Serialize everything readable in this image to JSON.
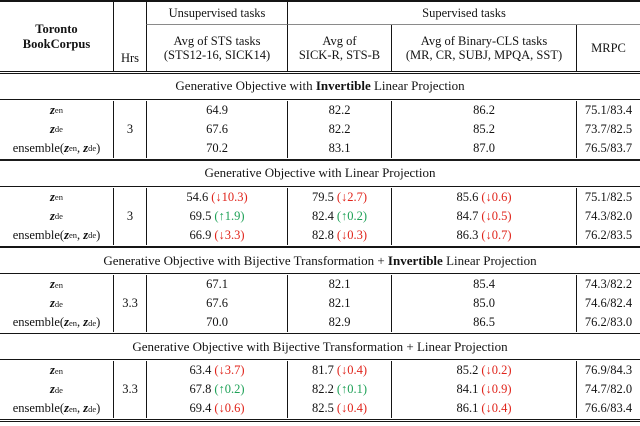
{
  "colors": {
    "delta_down": "#e0241b",
    "delta_up": "#1ea157",
    "rule": "#151515",
    "cmidrule": "#8a8a8a"
  },
  "header": {
    "corpus_line1": "Toronto",
    "corpus_line2": "BookCorpus",
    "hrs_label": "Hrs",
    "unsupervised_group": "Unsupervised tasks",
    "supervised_group": "Supervised tasks",
    "sts_line1": "Avg of STS tasks",
    "sts_line2": "(STS12-16, SICK14)",
    "sick_line1": "Avg of",
    "sick_line2": "SICK-R, STS-B",
    "cls_line1": "Avg of Binary-CLS tasks",
    "cls_line2": "(MR, CR, SUBJ, MPQA, SST)",
    "mrpc_label": "MRPC"
  },
  "sections": [
    {
      "title": [
        {
          "s": "Generative Objective with "
        },
        {
          "s": "Invertible",
          "bold": true
        },
        {
          "s": " Linear Projection"
        }
      ],
      "hrs": "3",
      "rows": [
        {
          "label": [
            {
              "t": "var",
              "s": "z",
              "sub": "en"
            }
          ],
          "cells": [
            {
              "v": "64.9"
            },
            {
              "v": "82.2"
            },
            {
              "v": "86.2"
            },
            {
              "v": "75.1/83.4"
            }
          ]
        },
        {
          "label": [
            {
              "t": "var",
              "s": "z",
              "sub": "de"
            }
          ],
          "cells": [
            {
              "v": "67.6"
            },
            {
              "v": "82.2"
            },
            {
              "v": "85.2"
            },
            {
              "v": "73.7/82.5"
            }
          ]
        },
        {
          "label": [
            {
              "t": "text",
              "s": "ensemble("
            },
            {
              "t": "var",
              "s": "z",
              "sub": "en"
            },
            {
              "t": "text",
              "s": ", "
            },
            {
              "t": "var",
              "s": "z",
              "sub": "de"
            },
            {
              "t": "text",
              "s": ")"
            }
          ],
          "cells": [
            {
              "v": "70.2"
            },
            {
              "v": "83.1"
            },
            {
              "v": "87.0"
            },
            {
              "v": "76.5/83.7"
            }
          ]
        }
      ]
    },
    {
      "title": [
        {
          "s": "Generative Objective with Linear Projection"
        }
      ],
      "hrs": "3",
      "rows": [
        {
          "label": [
            {
              "t": "var",
              "s": "z",
              "sub": "en"
            }
          ],
          "cells": [
            {
              "v": "54.6",
              "d": "(↓10.3)",
              "dir": "down"
            },
            {
              "v": "79.5",
              "d": "(↓2.7)",
              "dir": "down"
            },
            {
              "v": "85.6",
              "d": "(↓0.6)",
              "dir": "down"
            },
            {
              "v": "75.1/82.5"
            }
          ]
        },
        {
          "label": [
            {
              "t": "var",
              "s": "z",
              "sub": "de"
            }
          ],
          "cells": [
            {
              "v": "69.5",
              "d": "(↑1.9)",
              "dir": "up"
            },
            {
              "v": "82.4",
              "d": "(↑0.2)",
              "dir": "up"
            },
            {
              "v": "84.7",
              "d": "(↓0.5)",
              "dir": "down"
            },
            {
              "v": "74.3/82.0"
            }
          ]
        },
        {
          "label": [
            {
              "t": "text",
              "s": "ensemble("
            },
            {
              "t": "var",
              "s": "z",
              "sub": "en"
            },
            {
              "t": "text",
              "s": ", "
            },
            {
              "t": "var",
              "s": "z",
              "sub": "de"
            },
            {
              "t": "text",
              "s": ")"
            }
          ],
          "cells": [
            {
              "v": "66.9",
              "d": "(↓3.3)",
              "dir": "down"
            },
            {
              "v": "82.8",
              "d": "(↓0.3)",
              "dir": "down"
            },
            {
              "v": "86.3",
              "d": "(↓0.7)",
              "dir": "down"
            },
            {
              "v": "76.2/83.5"
            }
          ]
        }
      ]
    },
    {
      "title": [
        {
          "s": "Generative Objective with Bijective Transformation + "
        },
        {
          "s": "Invertible",
          "bold": true
        },
        {
          "s": " Linear Projection"
        }
      ],
      "hrs": "3.3",
      "rows": [
        {
          "label": [
            {
              "t": "var",
              "s": "z",
              "sub": "en"
            }
          ],
          "cells": [
            {
              "v": "67.1"
            },
            {
              "v": "82.1"
            },
            {
              "v": "85.4"
            },
            {
              "v": "74.3/82.2"
            }
          ]
        },
        {
          "label": [
            {
              "t": "var",
              "s": "z",
              "sub": "de"
            }
          ],
          "cells": [
            {
              "v": "67.6"
            },
            {
              "v": "82.1"
            },
            {
              "v": "85.0"
            },
            {
              "v": "74.6/82.4"
            }
          ]
        },
        {
          "label": [
            {
              "t": "text",
              "s": "ensemble("
            },
            {
              "t": "var",
              "s": "z",
              "sub": "en"
            },
            {
              "t": "text",
              "s": ", "
            },
            {
              "t": "var",
              "s": "z",
              "sub": "de"
            },
            {
              "t": "text",
              "s": ")"
            }
          ],
          "cells": [
            {
              "v": "70.0"
            },
            {
              "v": "82.9"
            },
            {
              "v": "86.5"
            },
            {
              "v": "76.2/83.0"
            }
          ]
        }
      ]
    },
    {
      "title": [
        {
          "s": "Generative Objective with Bijective Transformation + Linear Projection"
        }
      ],
      "hrs": "3.3",
      "rows": [
        {
          "label": [
            {
              "t": "var",
              "s": "z",
              "sub": "en"
            }
          ],
          "cells": [
            {
              "v": "63.4",
              "d": "(↓3.7)",
              "dir": "down"
            },
            {
              "v": "81.7",
              "d": "(↓0.4)",
              "dir": "down"
            },
            {
              "v": "85.2",
              "d": "(↓0.2)",
              "dir": "down"
            },
            {
              "v": "76.9/84.3"
            }
          ]
        },
        {
          "label": [
            {
              "t": "var",
              "s": "z",
              "sub": "de"
            }
          ],
          "cells": [
            {
              "v": "67.8",
              "d": "(↑0.2)",
              "dir": "up"
            },
            {
              "v": "82.2",
              "d": "(↑0.1)",
              "dir": "up"
            },
            {
              "v": "84.1",
              "d": "(↓0.9)",
              "dir": "down"
            },
            {
              "v": "74.7/82.0"
            }
          ]
        },
        {
          "label": [
            {
              "t": "text",
              "s": "ensemble("
            },
            {
              "t": "var",
              "s": "z",
              "sub": "en"
            },
            {
              "t": "text",
              "s": ", "
            },
            {
              "t": "var",
              "s": "z",
              "sub": "de"
            },
            {
              "t": "text",
              "s": ")"
            }
          ],
          "cells": [
            {
              "v": "69.4",
              "d": "(↓0.6)",
              "dir": "down"
            },
            {
              "v": "82.5",
              "d": "(↓0.4)",
              "dir": "down"
            },
            {
              "v": "86.1",
              "d": "(↓0.4)",
              "dir": "down"
            },
            {
              "v": "76.6/83.4"
            }
          ]
        }
      ]
    }
  ]
}
